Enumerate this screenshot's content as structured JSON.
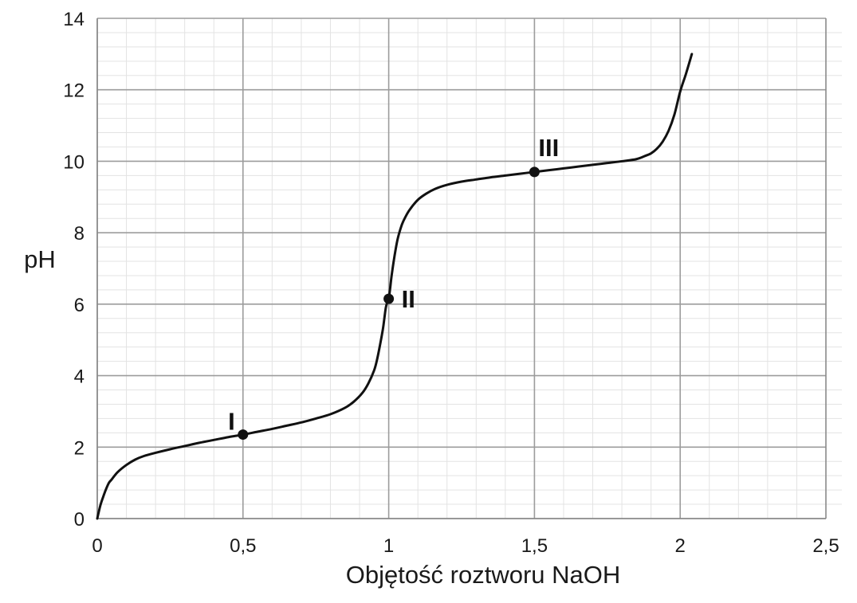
{
  "chart_data": {
    "type": "line",
    "title": "",
    "xlabel": "Objętość roztworu NaOH",
    "ylabel": "pH",
    "xlim": [
      0,
      2.5
    ],
    "ylim": [
      0,
      14
    ],
    "x_ticks": [
      {
        "value": 0,
        "label": "0"
      },
      {
        "value": 0.5,
        "label": "0,5"
      },
      {
        "value": 1,
        "label": "1"
      },
      {
        "value": 1.5,
        "label": "1,5"
      },
      {
        "value": 2,
        "label": "2"
      },
      {
        "value": 2.5,
        "label": "2,5"
      }
    ],
    "y_ticks": [
      {
        "value": 0,
        "label": "0"
      },
      {
        "value": 2,
        "label": "2"
      },
      {
        "value": 4,
        "label": "4"
      },
      {
        "value": 6,
        "label": "6"
      },
      {
        "value": 8,
        "label": "8"
      },
      {
        "value": 10,
        "label": "10"
      },
      {
        "value": 12,
        "label": "12"
      },
      {
        "value": 14,
        "label": "14"
      }
    ],
    "minor_grid": {
      "x_step": 0.1,
      "y_step": 0.4
    },
    "grid": true,
    "legend": "none",
    "series": [
      {
        "x": [
          0,
          0.01,
          0.02,
          0.03,
          0.04,
          0.05,
          0.07,
          0.1,
          0.13,
          0.16,
          0.2,
          0.25,
          0.3,
          0.35,
          0.4,
          0.45,
          0.5,
          0.55,
          0.6,
          0.65,
          0.7,
          0.75,
          0.8,
          0.85,
          0.88,
          0.91,
          0.93,
          0.95,
          0.96,
          0.97,
          0.98,
          0.985,
          0.99,
          0.995,
          1.0,
          1.005,
          1.01,
          1.02,
          1.03,
          1.04,
          1.05,
          1.07,
          1.1,
          1.13,
          1.16,
          1.2,
          1.25,
          1.3,
          1.35,
          1.4,
          1.45,
          1.5,
          1.55,
          1.6,
          1.65,
          1.7,
          1.75,
          1.8,
          1.85,
          1.88,
          1.9,
          1.92,
          1.94,
          1.96,
          1.98,
          2.0,
          2.02,
          2.04
        ],
        "y": [
          0,
          0.35,
          0.6,
          0.82,
          1.0,
          1.1,
          1.3,
          1.5,
          1.65,
          1.75,
          1.84,
          1.94,
          2.03,
          2.12,
          2.2,
          2.28,
          2.35,
          2.43,
          2.51,
          2.6,
          2.69,
          2.8,
          2.92,
          3.1,
          3.27,
          3.52,
          3.78,
          4.15,
          4.45,
          4.85,
          5.3,
          5.6,
          5.9,
          6.05,
          6.15,
          6.45,
          6.8,
          7.35,
          7.8,
          8.1,
          8.32,
          8.62,
          8.92,
          9.1,
          9.23,
          9.34,
          9.43,
          9.49,
          9.55,
          9.6,
          9.65,
          9.7,
          9.75,
          9.8,
          9.85,
          9.9,
          9.95,
          10.0,
          10.06,
          10.15,
          10.22,
          10.35,
          10.55,
          10.85,
          11.3,
          11.95,
          12.45,
          13.0
        ]
      }
    ],
    "points": [
      {
        "label": "I",
        "x": 0.5,
        "y": 2.35,
        "label_anchor": "upper-left"
      },
      {
        "label": "II",
        "x": 1.0,
        "y": 6.15,
        "label_anchor": "right"
      },
      {
        "label": "III",
        "x": 1.5,
        "y": 9.7,
        "label_anchor": "upper-right"
      }
    ]
  },
  "colors": {
    "line": "#111111",
    "major_grid": "#9c9c9c",
    "minor_grid": "#e3e3e3",
    "frame": "#8a8a8a",
    "text": "#1a1a1a"
  }
}
